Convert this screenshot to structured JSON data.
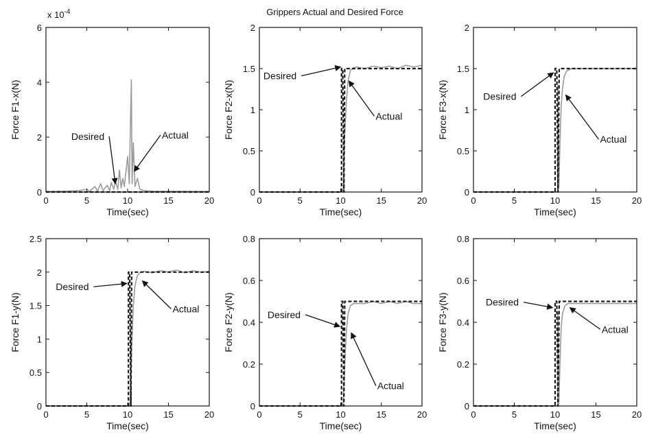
{
  "figure": {
    "title": "Grippers Actual and Desired Force"
  },
  "chart_data": [
    {
      "type": "line",
      "ylabel": "Force F1-x(N)",
      "xlabel": "Time(sec)",
      "xlim": [
        0,
        20
      ],
      "ylim": [
        0,
        6
      ],
      "xticks": [
        0,
        5,
        10,
        15,
        20
      ],
      "yticks": [
        0,
        2,
        4,
        6
      ],
      "yexponent": "x 10",
      "yexponent_power": "-4",
      "series": [
        {
          "role": "actual",
          "style": "solid",
          "points": [
            [
              0,
              0.02
            ],
            [
              2,
              0.03
            ],
            [
              4,
              0.05
            ],
            [
              5,
              0.1
            ],
            [
              5.3,
              0.02
            ],
            [
              6,
              0.2
            ],
            [
              6.3,
              0.03
            ],
            [
              6.7,
              0.3
            ],
            [
              7,
              0.05
            ],
            [
              7.5,
              0.25
            ],
            [
              7.8,
              0.05
            ],
            [
              8,
              0.35
            ],
            [
              8.3,
              0.1
            ],
            [
              8.5,
              0.4
            ],
            [
              8.8,
              0.1
            ],
            [
              9,
              0.8
            ],
            [
              9.2,
              0.15
            ],
            [
              9.4,
              0.5
            ],
            [
              9.6,
              0.2
            ],
            [
              10,
              1.3
            ],
            [
              10.2,
              0.3
            ],
            [
              10.45,
              4.1
            ],
            [
              10.55,
              0.3
            ],
            [
              10.7,
              1.8
            ],
            [
              10.9,
              0.2
            ],
            [
              11.2,
              0.5
            ],
            [
              11.5,
              0.1
            ],
            [
              12,
              0.05
            ],
            [
              13,
              0.03
            ],
            [
              20,
              0.02
            ]
          ]
        },
        {
          "role": "desired",
          "style": "dashed",
          "points": [
            [
              0,
              0
            ],
            [
              20,
              0
            ]
          ]
        }
      ],
      "annotations": [
        {
          "text": "Desired",
          "tx": 3.1,
          "ty": 1.9,
          "ax": 8.5,
          "ay": 0.3
        },
        {
          "text": "Actual",
          "tx": 14.2,
          "ty": 1.95,
          "ax": 10.8,
          "ay": 0.75
        }
      ]
    },
    {
      "type": "line",
      "ylabel": "Force F2-x(N)",
      "xlabel": "Time(sec)",
      "xlim": [
        0,
        20
      ],
      "ylim": [
        0,
        2
      ],
      "xticks": [
        0,
        5,
        10,
        15,
        20
      ],
      "yticks": [
        0,
        0.5,
        1,
        1.5,
        2
      ],
      "series": [
        {
          "role": "actual",
          "style": "solid",
          "points": [
            [
              0,
              0
            ],
            [
              10.3,
              0
            ],
            [
              10.5,
              0.7
            ],
            [
              10.7,
              1.1
            ],
            [
              10.9,
              1.35
            ],
            [
              11.2,
              1.48
            ],
            [
              11.6,
              1.51
            ],
            [
              12,
              1.52
            ],
            [
              13,
              1.5
            ],
            [
              14,
              1.53
            ],
            [
              15,
              1.51
            ],
            [
              16,
              1.53
            ],
            [
              17,
              1.5
            ],
            [
              18,
              1.54
            ],
            [
              19,
              1.52
            ],
            [
              20,
              1.54
            ]
          ]
        },
        {
          "role": "desired",
          "style": "dashed",
          "points": [
            [
              0,
              0
            ],
            [
              10.1,
              0
            ],
            [
              10.1,
              1.5
            ],
            [
              10.25,
              1.5
            ],
            [
              10.4,
              0
            ],
            [
              10.5,
              1.5
            ],
            [
              20,
              1.5
            ]
          ]
        }
      ],
      "annotations": [
        {
          "text": "Desired",
          "tx": 0.5,
          "ty": 1.37,
          "ax": 10.0,
          "ay": 1.52
        },
        {
          "text": "Actual",
          "tx": 14.3,
          "ty": 0.88,
          "ax": 11.0,
          "ay": 1.35
        }
      ]
    },
    {
      "type": "line",
      "ylabel": "Force F3-x(N)",
      "xlabel": "Time(sec)",
      "xlim": [
        0,
        20
      ],
      "ylim": [
        0,
        2
      ],
      "xticks": [
        0,
        5,
        10,
        15,
        20
      ],
      "yticks": [
        0,
        0.5,
        1,
        1.5,
        2
      ],
      "series": [
        {
          "role": "actual",
          "style": "solid",
          "points": [
            [
              0,
              0
            ],
            [
              10.3,
              0
            ],
            [
              10.35,
              1.3
            ],
            [
              10.45,
              0.05
            ],
            [
              10.6,
              0.6
            ],
            [
              10.75,
              1.05
            ],
            [
              10.9,
              1.25
            ],
            [
              11.1,
              1.4
            ],
            [
              11.4,
              1.47
            ],
            [
              12,
              1.5
            ],
            [
              20,
              1.5
            ]
          ]
        },
        {
          "role": "desired",
          "style": "dashed",
          "points": [
            [
              0,
              0
            ],
            [
              10,
              0
            ],
            [
              10,
              1.5
            ],
            [
              10.2,
              1.5
            ],
            [
              10.35,
              0
            ],
            [
              10.5,
              1.5
            ],
            [
              20,
              1.5
            ]
          ]
        }
      ],
      "annotations": [
        {
          "text": "Desired",
          "tx": 1.2,
          "ty": 1.12,
          "ax": 9.8,
          "ay": 1.45
        },
        {
          "text": "Actual",
          "tx": 15.5,
          "ty": 0.6,
          "ax": 11.3,
          "ay": 1.18
        }
      ]
    },
    {
      "type": "line",
      "ylabel": "Force F1-y(N)",
      "xlabel": "Time(sec)",
      "xlim": [
        0,
        20
      ],
      "ylim": [
        0,
        2.5
      ],
      "xticks": [
        0,
        5,
        10,
        15,
        20
      ],
      "yticks": [
        0,
        0.5,
        1,
        1.5,
        2,
        2.5
      ],
      "series": [
        {
          "role": "actual",
          "style": "solid",
          "points": [
            [
              0,
              0
            ],
            [
              10.3,
              0
            ],
            [
              10.5,
              0.9
            ],
            [
              10.7,
              1.5
            ],
            [
              10.9,
              1.8
            ],
            [
              11.2,
              1.95
            ],
            [
              11.6,
              2.0
            ],
            [
              12,
              2.01
            ],
            [
              13,
              1.99
            ],
            [
              14,
              2.02
            ],
            [
              15,
              2.0
            ],
            [
              16,
              2.03
            ],
            [
              17,
              1.99
            ],
            [
              18,
              2.02
            ],
            [
              19,
              2.0
            ],
            [
              20,
              2.01
            ]
          ]
        },
        {
          "role": "desired",
          "style": "dashed",
          "points": [
            [
              0,
              0
            ],
            [
              10.1,
              0
            ],
            [
              10.1,
              2.0
            ],
            [
              10.25,
              2.0
            ],
            [
              10.4,
              0
            ],
            [
              10.5,
              2.0
            ],
            [
              20,
              2.0
            ]
          ]
        }
      ],
      "annotations": [
        {
          "text": "Desired",
          "tx": 1.2,
          "ty": 1.73,
          "ax": 9.9,
          "ay": 1.83
        },
        {
          "text": "Actual",
          "tx": 15.5,
          "ty": 1.4,
          "ax": 11.8,
          "ay": 1.87
        }
      ]
    },
    {
      "type": "line",
      "ylabel": "Force F2-y(N)",
      "xlabel": "Time(sec)",
      "xlim": [
        0,
        20
      ],
      "ylim": [
        0,
        0.8
      ],
      "xticks": [
        0,
        5,
        10,
        15,
        20
      ],
      "yticks": [
        0,
        0.2,
        0.4,
        0.6,
        0.8
      ],
      "series": [
        {
          "role": "actual",
          "style": "solid",
          "points": [
            [
              0,
              0
            ],
            [
              10.3,
              0
            ],
            [
              10.5,
              0.2
            ],
            [
              10.7,
              0.36
            ],
            [
              10.9,
              0.44
            ],
            [
              11.2,
              0.48
            ],
            [
              11.6,
              0.49
            ],
            [
              12,
              0.49
            ],
            [
              13,
              0.49
            ],
            [
              14,
              0.5
            ],
            [
              15,
              0.49
            ],
            [
              16,
              0.5
            ],
            [
              17,
              0.49
            ],
            [
              18,
              0.5
            ],
            [
              19,
              0.49
            ],
            [
              20,
              0.49
            ]
          ]
        },
        {
          "role": "desired",
          "style": "dashed",
          "points": [
            [
              0,
              0
            ],
            [
              10.1,
              0
            ],
            [
              10.1,
              0.5
            ],
            [
              10.25,
              0.5
            ],
            [
              10.4,
              0
            ],
            [
              10.5,
              0.5
            ],
            [
              20,
              0.5
            ]
          ]
        }
      ],
      "annotations": [
        {
          "text": "Desired",
          "tx": 1.0,
          "ty": 0.42,
          "ax": 9.9,
          "ay": 0.38
        },
        {
          "text": "Actual",
          "tx": 14.5,
          "ty": 0.08,
          "ax": 11.3,
          "ay": 0.35
        }
      ]
    },
    {
      "type": "line",
      "ylabel": "Force F3-y(N)",
      "xlabel": "Time(sec)",
      "xlim": [
        0,
        20
      ],
      "ylim": [
        0,
        0.8
      ],
      "xticks": [
        0,
        5,
        10,
        15,
        20
      ],
      "yticks": [
        0,
        0.2,
        0.4,
        0.6,
        0.8
      ],
      "series": [
        {
          "role": "actual",
          "style": "solid",
          "points": [
            [
              0,
              0
            ],
            [
              10.3,
              0
            ],
            [
              10.35,
              0.45
            ],
            [
              10.45,
              0.01
            ],
            [
              10.6,
              0.2
            ],
            [
              10.75,
              0.38
            ],
            [
              10.9,
              0.44
            ],
            [
              11.2,
              0.48
            ],
            [
              11.6,
              0.49
            ],
            [
              12,
              0.49
            ],
            [
              20,
              0.49
            ]
          ]
        },
        {
          "role": "desired",
          "style": "dashed",
          "points": [
            [
              0,
              0
            ],
            [
              10,
              0
            ],
            [
              10,
              0.5
            ],
            [
              10.2,
              0.5
            ],
            [
              10.35,
              0
            ],
            [
              10.5,
              0.5
            ],
            [
              20,
              0.5
            ]
          ]
        }
      ],
      "annotations": [
        {
          "text": "Desired",
          "tx": 1.5,
          "ty": 0.48,
          "ax": 9.7,
          "ay": 0.47
        },
        {
          "text": "Actual",
          "tx": 15.7,
          "ty": 0.35,
          "ax": 11.8,
          "ay": 0.47
        }
      ]
    }
  ]
}
